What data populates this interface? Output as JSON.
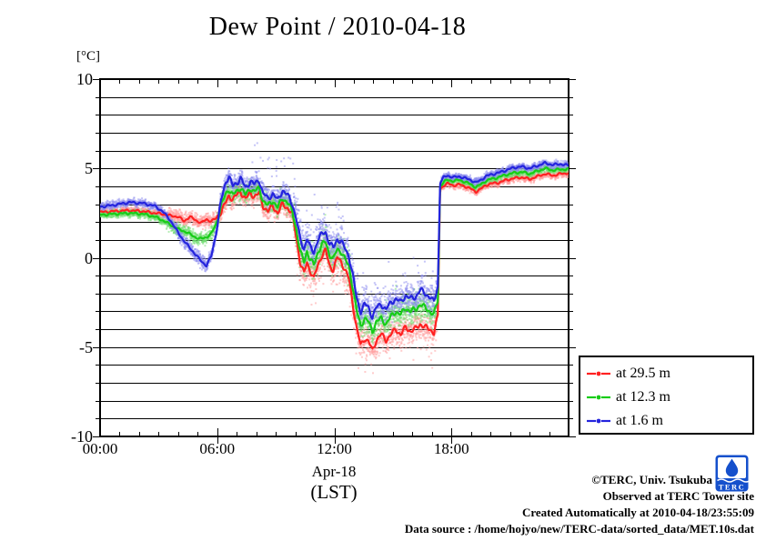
{
  "header": {
    "title": "Dew Point / 2010-04-18"
  },
  "axes": {
    "y_unit_label": "[°C]",
    "x_date_label": "Apr-18",
    "x_tz_label": "(LST)"
  },
  "legend": {
    "items": [
      {
        "label": "at 29.5 m",
        "color": "#ff2121"
      },
      {
        "label": "at 12.3 m",
        "color": "#17cc17"
      },
      {
        "label": "at 1.6 m",
        "color": "#2424dd"
      }
    ]
  },
  "footer": {
    "copyright": "©TERC, Univ. Tsukuba",
    "observed": "Observed at TERC Tower site",
    "created": "Created Automatically at 2010-04-18/23:55:09",
    "data_source": "Data source : /home/hojyo/new/TERC-data/sorted_data/MET.10s.dat",
    "logo_text": "TERC",
    "logo_color": "#1550cc"
  },
  "chart_data": {
    "type": "scatter",
    "title": "Dew Point / 2010-04-18",
    "xlabel": "Apr-18 (LST)",
    "ylabel": "[°C]",
    "grid": "horizontal lines every 1 °C, box frame with hourly ticks",
    "legend_position": "outside right-bottom",
    "x": {
      "min": 0,
      "max": 24,
      "minor_step_hours": 1,
      "major_ticks": [
        {
          "h": 0,
          "label": "00:00"
        },
        {
          "h": 6,
          "label": "06:00"
        },
        {
          "h": 12,
          "label": "12:00"
        },
        {
          "h": 18,
          "label": "18:00"
        }
      ]
    },
    "y": {
      "min": -10,
      "max": 10,
      "grid_step": 1,
      "major_ticks": [
        {
          "v": 10,
          "label": "10"
        },
        {
          "v": 5,
          "label": "5"
        },
        {
          "v": 0,
          "label": "0"
        },
        {
          "v": -5,
          "label": "-5"
        },
        {
          "v": -10,
          "label": "-10"
        }
      ]
    },
    "noise": {
      "sigma_windows": [
        [
          0,
          3.4,
          0.1
        ],
        [
          3.4,
          6.1,
          0.18
        ],
        [
          6.1,
          9.9,
          0.25
        ],
        [
          9.9,
          12.9,
          0.45
        ],
        [
          12.9,
          17.35,
          0.4
        ],
        [
          17.35,
          24.01,
          0.1
        ]
      ],
      "wiggle_day": 0.17,
      "wiggle_night": 0.07
    },
    "series": [
      {
        "name": "at 29.5 m",
        "height_m": 29.5,
        "color": "#ff2121",
        "scatter_color": "#ff9a9a",
        "seed": 101,
        "phase": 0.0,
        "spikes": [
          [
            9.9,
            17.3,
            0.045,
            -1.6
          ]
        ],
        "keyframes": [
          [
            0,
            2.55
          ],
          [
            0.7,
            2.6
          ],
          [
            1.5,
            2.65
          ],
          [
            2.2,
            2.6
          ],
          [
            2.8,
            2.5
          ],
          [
            3.2,
            2.45
          ],
          [
            3.6,
            2.35
          ],
          [
            4.0,
            2.3
          ],
          [
            4.3,
            2.05
          ],
          [
            4.6,
            2.3
          ],
          [
            4.9,
            2.1
          ],
          [
            5.2,
            1.95
          ],
          [
            5.45,
            2.15
          ],
          [
            5.7,
            2.05
          ],
          [
            5.95,
            2.2
          ],
          [
            6.2,
            2.6
          ],
          [
            6.45,
            3.1
          ],
          [
            6.6,
            3.45
          ],
          [
            6.8,
            3.3
          ],
          [
            7.0,
            3.5
          ],
          [
            7.2,
            3.7
          ],
          [
            7.45,
            3.3
          ],
          [
            7.7,
            3.6
          ],
          [
            7.9,
            3.45
          ],
          [
            8.15,
            3.6
          ],
          [
            8.35,
            2.9
          ],
          [
            8.6,
            2.6
          ],
          [
            8.85,
            2.9
          ],
          [
            9.1,
            2.5
          ],
          [
            9.35,
            3.0
          ],
          [
            9.6,
            2.8
          ],
          [
            9.85,
            2.4
          ],
          [
            10.05,
            1.2
          ],
          [
            10.25,
            -0.3
          ],
          [
            10.45,
            -0.9
          ],
          [
            10.6,
            -0.2
          ],
          [
            10.75,
            -0.7
          ],
          [
            10.95,
            -1.2
          ],
          [
            11.15,
            -0.4
          ],
          [
            11.35,
            0.1
          ],
          [
            11.55,
            0.4
          ],
          [
            11.75,
            -0.4
          ],
          [
            11.95,
            -0.7
          ],
          [
            12.15,
            0.0
          ],
          [
            12.35,
            -0.2
          ],
          [
            12.55,
            -0.7
          ],
          [
            12.75,
            -1.2
          ],
          [
            12.95,
            -2.6
          ],
          [
            13.15,
            -4.0
          ],
          [
            13.35,
            -4.9
          ],
          [
            13.55,
            -4.5
          ],
          [
            13.75,
            -4.7
          ],
          [
            13.95,
            -5.2
          ],
          [
            14.15,
            -4.6
          ],
          [
            14.4,
            -4.3
          ],
          [
            14.65,
            -4.6
          ],
          [
            14.9,
            -4.3
          ],
          [
            15.15,
            -4.0
          ],
          [
            15.4,
            -4.3
          ],
          [
            15.65,
            -3.9
          ],
          [
            15.9,
            -4.1
          ],
          [
            16.15,
            -4.0
          ],
          [
            16.4,
            -3.7
          ],
          [
            16.65,
            -3.9
          ],
          [
            16.9,
            -4.0
          ],
          [
            17.1,
            -4.2
          ],
          [
            17.3,
            -3.3
          ],
          [
            17.42,
            3.85
          ],
          [
            17.6,
            4.05
          ],
          [
            17.8,
            4.15
          ],
          [
            18.1,
            4.05
          ],
          [
            18.4,
            4.1
          ],
          [
            18.7,
            4.0
          ],
          [
            19.0,
            3.85
          ],
          [
            19.25,
            3.7
          ],
          [
            19.5,
            3.85
          ],
          [
            19.75,
            4.05
          ],
          [
            20.0,
            4.15
          ],
          [
            20.4,
            4.2
          ],
          [
            20.8,
            4.35
          ],
          [
            21.2,
            4.45
          ],
          [
            21.6,
            4.5
          ],
          [
            22.0,
            4.4
          ],
          [
            22.4,
            4.55
          ],
          [
            22.8,
            4.7
          ],
          [
            23.2,
            4.6
          ],
          [
            23.6,
            4.7
          ],
          [
            24,
            4.75
          ]
        ]
      },
      {
        "name": "at 12.3 m",
        "height_m": 12.3,
        "color": "#17cc17",
        "scatter_color": "#70dd70",
        "seed": 202,
        "phase": 1.3,
        "spikes": [
          [
            9.9,
            17.3,
            0.03,
            1.3
          ]
        ],
        "keyframes": [
          [
            0,
            2.4
          ],
          [
            0.7,
            2.45
          ],
          [
            1.5,
            2.5
          ],
          [
            2.2,
            2.45
          ],
          [
            2.8,
            2.3
          ],
          [
            3.2,
            2.1
          ],
          [
            3.6,
            1.85
          ],
          [
            4.0,
            1.6
          ],
          [
            4.4,
            1.45
          ],
          [
            4.8,
            1.2
          ],
          [
            5.1,
            1.05
          ],
          [
            5.45,
            1.15
          ],
          [
            5.7,
            1.35
          ],
          [
            5.95,
            1.9
          ],
          [
            6.2,
            2.9
          ],
          [
            6.45,
            3.6
          ],
          [
            6.6,
            3.85
          ],
          [
            6.8,
            3.5
          ],
          [
            7.0,
            3.7
          ],
          [
            7.2,
            3.95
          ],
          [
            7.45,
            3.5
          ],
          [
            7.7,
            3.9
          ],
          [
            7.9,
            3.7
          ],
          [
            8.15,
            3.9
          ],
          [
            8.35,
            3.2
          ],
          [
            8.6,
            2.9
          ],
          [
            8.85,
            3.2
          ],
          [
            9.1,
            2.8
          ],
          [
            9.35,
            3.35
          ],
          [
            9.6,
            3.1
          ],
          [
            9.85,
            2.6
          ],
          [
            10.05,
            1.6
          ],
          [
            10.25,
            0.3
          ],
          [
            10.45,
            -0.2
          ],
          [
            10.6,
            0.4
          ],
          [
            10.75,
            -0.1
          ],
          [
            10.95,
            -0.4
          ],
          [
            11.15,
            0.3
          ],
          [
            11.35,
            0.7
          ],
          [
            11.55,
            0.9
          ],
          [
            11.75,
            0.2
          ],
          [
            11.95,
            -0.1
          ],
          [
            12.15,
            0.5
          ],
          [
            12.35,
            0.35
          ],
          [
            12.55,
            -0.1
          ],
          [
            12.75,
            -0.5
          ],
          [
            12.95,
            -1.7
          ],
          [
            13.15,
            -3.0
          ],
          [
            13.35,
            -3.8
          ],
          [
            13.55,
            -3.4
          ],
          [
            13.75,
            -3.6
          ],
          [
            13.95,
            -4.1
          ],
          [
            14.15,
            -3.6
          ],
          [
            14.4,
            -3.4
          ],
          [
            14.65,
            -3.7
          ],
          [
            14.9,
            -3.3
          ],
          [
            15.15,
            -3.0
          ],
          [
            15.4,
            -3.2
          ],
          [
            15.65,
            -2.8
          ],
          [
            15.9,
            -3.0
          ],
          [
            16.15,
            -2.9
          ],
          [
            16.4,
            -2.6
          ],
          [
            16.65,
            -2.8
          ],
          [
            16.9,
            -3.0
          ],
          [
            17.1,
            -3.2
          ],
          [
            17.3,
            -2.4
          ],
          [
            17.42,
            4.0
          ],
          [
            17.6,
            4.25
          ],
          [
            17.8,
            4.35
          ],
          [
            18.1,
            4.3
          ],
          [
            18.4,
            4.35
          ],
          [
            18.7,
            4.25
          ],
          [
            19.0,
            4.1
          ],
          [
            19.25,
            3.95
          ],
          [
            19.5,
            4.1
          ],
          [
            19.75,
            4.3
          ],
          [
            20.0,
            4.4
          ],
          [
            20.4,
            4.5
          ],
          [
            20.8,
            4.65
          ],
          [
            21.2,
            4.75
          ],
          [
            21.6,
            4.8
          ],
          [
            22.0,
            4.7
          ],
          [
            22.4,
            4.85
          ],
          [
            22.8,
            5.0
          ],
          [
            23.2,
            4.9
          ],
          [
            23.6,
            4.95
          ],
          [
            24,
            4.95
          ]
        ]
      },
      {
        "name": "at 1.6 m",
        "height_m": 1.6,
        "color": "#2424dd",
        "scatter_color": "#8c8cf0",
        "seed": 303,
        "phase": 2.6,
        "spikes": [
          [
            7.8,
            12.6,
            0.055,
            2.4
          ],
          [
            12.9,
            17.3,
            0.04,
            1.8
          ]
        ],
        "keyframes": [
          [
            0,
            2.85
          ],
          [
            0.7,
            2.95
          ],
          [
            1.5,
            3.1
          ],
          [
            2.2,
            3.05
          ],
          [
            2.8,
            2.9
          ],
          [
            3.2,
            2.6
          ],
          [
            3.6,
            2.1
          ],
          [
            4.0,
            1.4
          ],
          [
            4.4,
            0.8
          ],
          [
            4.8,
            0.3
          ],
          [
            5.1,
            -0.1
          ],
          [
            5.45,
            -0.45
          ],
          [
            5.7,
            0.1
          ],
          [
            5.95,
            1.4
          ],
          [
            6.2,
            3.2
          ],
          [
            6.45,
            4.3
          ],
          [
            6.6,
            4.55
          ],
          [
            6.8,
            4.0
          ],
          [
            7.0,
            4.2
          ],
          [
            7.2,
            4.45
          ],
          [
            7.45,
            3.9
          ],
          [
            7.7,
            4.3
          ],
          [
            7.9,
            4.1
          ],
          [
            8.15,
            4.35
          ],
          [
            8.35,
            3.6
          ],
          [
            8.6,
            3.3
          ],
          [
            8.85,
            3.6
          ],
          [
            9.1,
            3.2
          ],
          [
            9.35,
            3.8
          ],
          [
            9.6,
            3.5
          ],
          [
            9.85,
            3.0
          ],
          [
            10.05,
            2.2
          ],
          [
            10.25,
            1.0
          ],
          [
            10.45,
            0.5
          ],
          [
            10.6,
            1.1
          ],
          [
            10.75,
            0.6
          ],
          [
            10.95,
            0.3
          ],
          [
            11.15,
            1.0
          ],
          [
            11.35,
            1.3
          ],
          [
            11.55,
            1.45
          ],
          [
            11.75,
            0.8
          ],
          [
            11.95,
            0.55
          ],
          [
            12.15,
            1.05
          ],
          [
            12.35,
            0.9
          ],
          [
            12.55,
            0.5
          ],
          [
            12.75,
            0.1
          ],
          [
            12.95,
            -1.0
          ],
          [
            13.15,
            -2.3
          ],
          [
            13.35,
            -3.0
          ],
          [
            13.55,
            -2.6
          ],
          [
            13.75,
            -2.8
          ],
          [
            13.95,
            -3.3
          ],
          [
            14.15,
            -2.8
          ],
          [
            14.4,
            -2.6
          ],
          [
            14.65,
            -2.9
          ],
          [
            14.9,
            -2.5
          ],
          [
            15.15,
            -2.3
          ],
          [
            15.4,
            -2.5
          ],
          [
            15.65,
            -2.1
          ],
          [
            15.9,
            -2.3
          ],
          [
            16.15,
            -2.2
          ],
          [
            16.4,
            -1.8
          ],
          [
            16.65,
            -2.0
          ],
          [
            16.9,
            -2.2
          ],
          [
            17.1,
            -2.5
          ],
          [
            17.3,
            -1.6
          ],
          [
            17.42,
            4.2
          ],
          [
            17.6,
            4.5
          ],
          [
            17.8,
            4.6
          ],
          [
            18.1,
            4.5
          ],
          [
            18.4,
            4.55
          ],
          [
            18.7,
            4.45
          ],
          [
            19.0,
            4.35
          ],
          [
            19.25,
            4.2
          ],
          [
            19.5,
            4.35
          ],
          [
            19.75,
            4.55
          ],
          [
            20.0,
            4.65
          ],
          [
            20.4,
            4.75
          ],
          [
            20.8,
            4.9
          ],
          [
            21.2,
            5.05
          ],
          [
            21.6,
            5.1
          ],
          [
            22.0,
            5.0
          ],
          [
            22.4,
            5.15
          ],
          [
            22.8,
            5.3
          ],
          [
            23.2,
            5.2
          ],
          [
            23.6,
            5.25
          ],
          [
            24,
            5.15
          ]
        ]
      }
    ]
  }
}
